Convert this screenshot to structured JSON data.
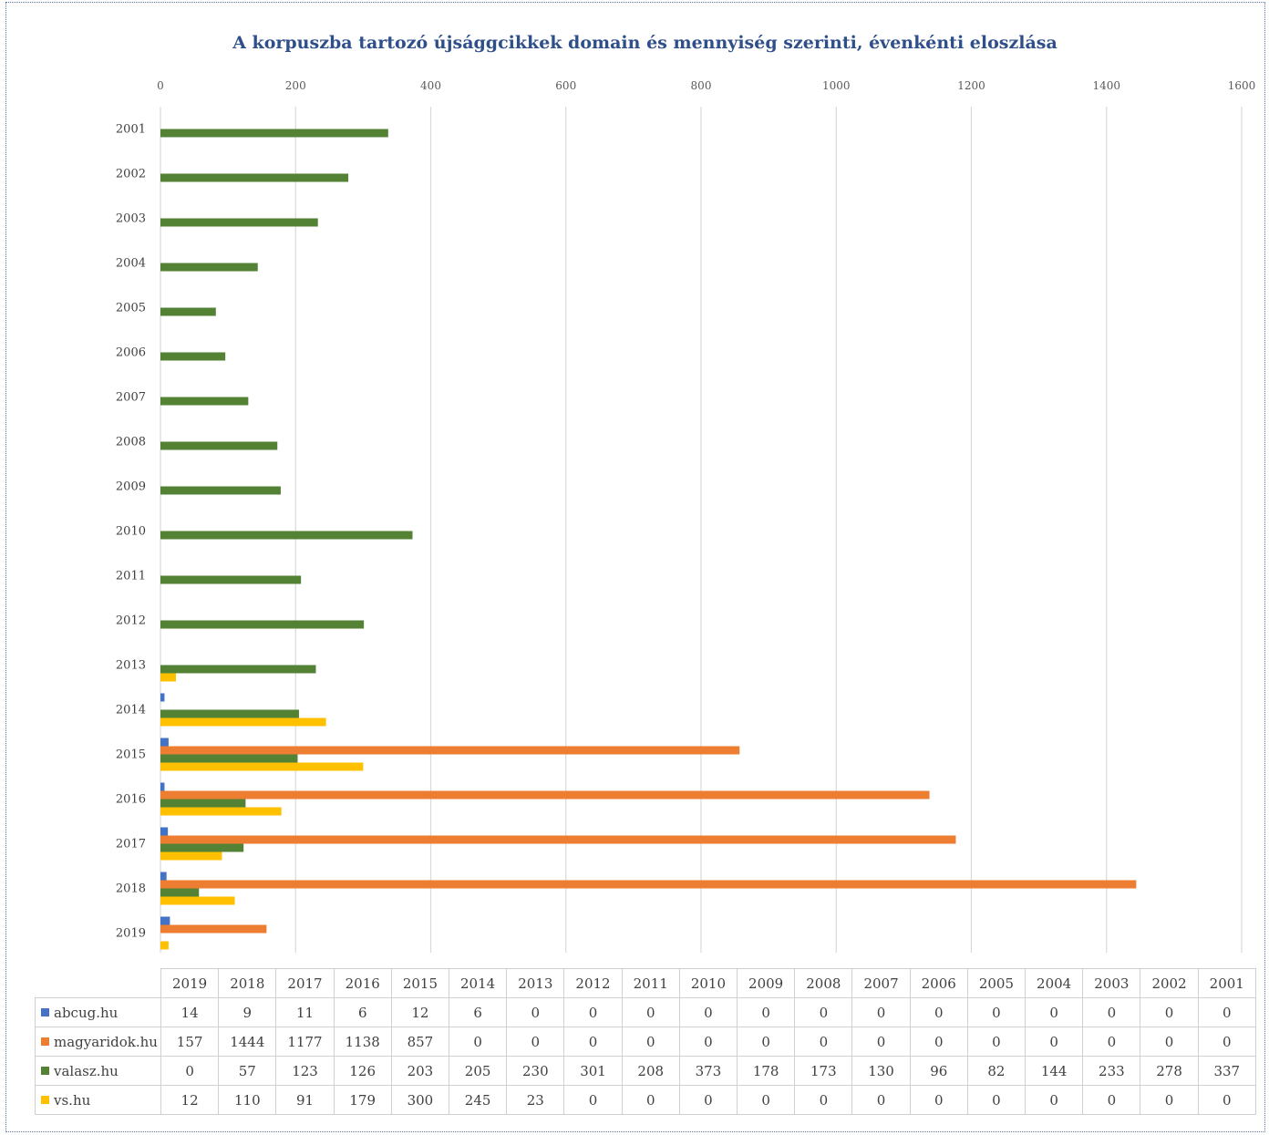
{
  "chart_data": {
    "type": "bar",
    "orientation": "horizontal",
    "title": "A korpuszba tartozó újsággcikkek domain és mennyiség szerinti, évenkénti eloszlása",
    "xlim": [
      0,
      1600
    ],
    "x_ticks": [
      "0",
      "200",
      "400",
      "600",
      "800",
      "1000",
      "1200",
      "1400",
      "1600"
    ],
    "grid": true,
    "legend": "data-table",
    "categories": [
      "2019",
      "2018",
      "2017",
      "2016",
      "2015",
      "2014",
      "2013",
      "2012",
      "2011",
      "2010",
      "2009",
      "2008",
      "2007",
      "2006",
      "2005",
      "2004",
      "2003",
      "2002",
      "2001"
    ],
    "series": [
      {
        "name": "abcug.hu",
        "color": "#4472c4",
        "values": [
          14,
          9,
          11,
          6,
          12,
          6,
          0,
          0,
          0,
          0,
          0,
          0,
          0,
          0,
          0,
          0,
          0,
          0,
          0
        ]
      },
      {
        "name": "magyaridok.hu",
        "color": "#ed7d31",
        "values": [
          157,
          1444,
          1177,
          1138,
          857,
          0,
          0,
          0,
          0,
          0,
          0,
          0,
          0,
          0,
          0,
          0,
          0,
          0,
          0
        ]
      },
      {
        "name": "valasz.hu",
        "color": "#548235",
        "values": [
          0,
          57,
          123,
          126,
          203,
          205,
          230,
          301,
          208,
          373,
          178,
          173,
          130,
          96,
          82,
          144,
          233,
          278,
          337
        ]
      },
      {
        "name": "vs.hu",
        "color": "#ffc000",
        "values": [
          12,
          110,
          91,
          179,
          300,
          245,
          23,
          0,
          0,
          0,
          0,
          0,
          0,
          0,
          0,
          0,
          0,
          0,
          0
        ]
      }
    ]
  }
}
